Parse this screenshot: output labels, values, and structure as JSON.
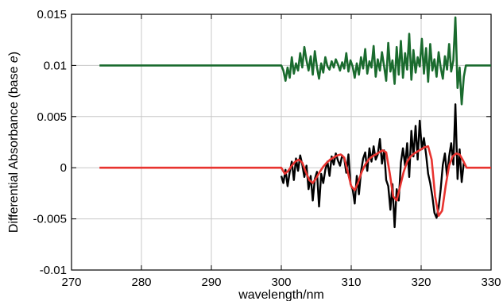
{
  "chart_data": {
    "type": "line",
    "title": "",
    "xlabel": "wavelength/nm",
    "ylabel_main": "Differential Absorbance (base ",
    "ylabel_italic": "e",
    "ylabel_end": ")",
    "xlim": [
      270,
      330
    ],
    "ylim": [
      -0.01,
      0.015
    ],
    "x_ticks": [
      270,
      280,
      290,
      300,
      310,
      320,
      330
    ],
    "x_tick_labels": [
      "270",
      "280",
      "290",
      "300",
      "310",
      "320",
      "330"
    ],
    "y_ticks": [
      -0.01,
      -0.005,
      0,
      0.005,
      0.01,
      0.015
    ],
    "y_tick_labels": [
      "-0.01",
      "-0.005",
      "0",
      "0.005",
      "0.01",
      "0.015"
    ],
    "grid": true,
    "colors": {
      "residual": "#1a6b2e",
      "measured": "#000000",
      "fit": "#e8332f",
      "grid": "#c8c8c8"
    },
    "series": [
      {
        "key": "residual",
        "x": [
          274,
          300.0,
          300.3,
          300.6,
          300.9,
          301.2,
          301.5,
          301.8,
          302.1,
          302.4,
          302.7,
          303.0,
          303.3,
          303.6,
          303.9,
          304.2,
          304.5,
          304.8,
          305.1,
          305.4,
          305.7,
          306.0,
          306.3,
          306.6,
          306.9,
          307.2,
          307.5,
          307.8,
          308.1,
          308.4,
          308.7,
          309.0,
          309.3,
          309.6,
          309.9,
          310.2,
          310.5,
          310.8,
          311.1,
          311.4,
          311.7,
          312.0,
          312.3,
          312.6,
          312.9,
          313.2,
          313.5,
          313.8,
          314.1,
          314.4,
          314.7,
          315.0,
          315.3,
          315.6,
          315.9,
          316.2,
          316.5,
          316.8,
          317.1,
          317.4,
          317.7,
          318.0,
          318.3,
          318.6,
          318.9,
          319.2,
          319.5,
          319.8,
          320.1,
          320.4,
          320.7,
          321.0,
          321.3,
          321.6,
          321.9,
          322.2,
          322.5,
          322.8,
          323.1,
          323.4,
          323.7,
          324.0,
          324.3,
          324.6,
          324.9,
          325.2,
          325.5,
          325.8,
          326.1,
          326.4,
          330
        ],
        "y": [
          0.01,
          0.01,
          0.0095,
          0.0085,
          0.0098,
          0.0088,
          0.0108,
          0.0092,
          0.0102,
          0.0095,
          0.0112,
          0.0098,
          0.0118,
          0.0105,
          0.0095,
          0.0109,
          0.0091,
          0.0114,
          0.0098,
          0.0087,
          0.0102,
          0.0093,
          0.0108,
          0.0099,
          0.0096,
          0.0104,
          0.0098,
          0.0106,
          0.0101,
          0.0095,
          0.0103,
          0.0097,
          0.0112,
          0.0094,
          0.0105,
          0.0099,
          0.0088,
          0.0102,
          0.0091,
          0.0108,
          0.0097,
          0.0116,
          0.0092,
          0.0104,
          0.0098,
          0.0119,
          0.0089,
          0.0106,
          0.0095,
          0.0113,
          0.0099,
          0.0085,
          0.0122,
          0.0094,
          0.0105,
          0.0082,
          0.0118,
          0.0091,
          0.0124,
          0.0088,
          0.0112,
          0.0096,
          0.0131,
          0.0086,
          0.0115,
          0.0093,
          0.0108,
          0.0099,
          0.0126,
          0.0092,
          0.0117,
          0.0084,
          0.0121,
          0.0095,
          0.0106,
          0.0089,
          0.0113,
          0.0098,
          0.0087,
          0.0109,
          0.0096,
          0.0121,
          0.0094,
          0.0105,
          0.0147,
          0.0078,
          0.0098,
          0.0062,
          0.0089,
          0.01,
          0.01
        ]
      },
      {
        "key": "measured",
        "x": [
          300.0,
          300.3,
          300.6,
          300.9,
          301.2,
          301.5,
          301.8,
          302.1,
          302.4,
          302.7,
          303.0,
          303.3,
          303.6,
          303.9,
          304.2,
          304.5,
          304.8,
          305.1,
          305.4,
          305.7,
          306.0,
          306.3,
          306.6,
          306.9,
          307.2,
          307.5,
          307.8,
          308.1,
          308.4,
          308.7,
          309.0,
          309.3,
          309.6,
          309.9,
          310.2,
          310.5,
          310.8,
          311.1,
          311.4,
          311.7,
          312.0,
          312.3,
          312.6,
          312.9,
          313.2,
          313.5,
          313.8,
          314.1,
          314.4,
          314.7,
          315.0,
          315.3,
          315.6,
          315.9,
          316.2,
          316.5,
          316.8,
          317.1,
          317.4,
          317.7,
          318.0,
          318.3,
          318.6,
          318.9,
          319.2,
          319.5,
          319.8,
          320.1,
          320.4,
          320.7,
          321.0,
          321.3,
          321.6,
          321.9,
          322.2,
          322.5,
          322.8,
          323.1,
          323.4,
          323.7,
          324.0,
          324.3,
          324.6,
          324.9,
          325.2,
          325.5,
          325.8,
          326.1
        ],
        "y": [
          -0.0008,
          -0.0015,
          -0.0002,
          -0.0018,
          -0.0004,
          0.0006,
          -0.0012,
          0.0009,
          -0.0003,
          0.0012,
          0.0003,
          -0.0009,
          0.0002,
          -0.0021,
          -0.0008,
          -0.0032,
          -0.0011,
          -0.0004,
          -0.0038,
          -0.0006,
          -0.0015,
          -0.0002,
          0.0006,
          -0.0008,
          0.0011,
          0.0003,
          0.0014,
          0.0007,
          0.0002,
          0.0012,
          0.0009,
          -0.0005,
          0.0013,
          -0.0016,
          -0.0021,
          -0.0035,
          -0.0008,
          -0.0026,
          -0.0004,
          0.0009,
          0.0015,
          -0.0003,
          0.0019,
          0.0006,
          0.0021,
          0.0008,
          0.0013,
          0.0028,
          0.0004,
          0.0017,
          -0.0012,
          -0.0018,
          -0.0041,
          -0.0016,
          -0.0058,
          -0.0021,
          -0.0032,
          0.0005,
          0.0019,
          0.0002,
          0.0024,
          -0.0009,
          0.0036,
          0.0011,
          0.0041,
          0.0008,
          0.0046,
          0.0018,
          0.0029,
          0.0013,
          -0.0006,
          -0.0015,
          -0.0028,
          -0.0044,
          -0.0049,
          -0.0039,
          -0.0021,
          0.0003,
          0.0014,
          -0.0009,
          0.0011,
          0.0024,
          0.0003,
          0.0062,
          -0.0011,
          0.0018,
          -0.0014,
          0.0005
        ]
      },
      {
        "key": "fit",
        "x": [
          274,
          300.0,
          300.5,
          301.0,
          301.5,
          302.0,
          302.5,
          303.0,
          303.5,
          304.0,
          304.5,
          305.0,
          305.5,
          306.0,
          306.5,
          307.0,
          307.5,
          308.0,
          308.5,
          309.0,
          309.5,
          310.0,
          310.5,
          311.0,
          311.5,
          312.0,
          312.5,
          313.0,
          313.5,
          314.0,
          314.5,
          315.0,
          315.5,
          316.0,
          316.5,
          317.0,
          317.5,
          318.0,
          318.5,
          319.0,
          319.5,
          320.0,
          320.5,
          321.0,
          321.5,
          322.0,
          322.5,
          323.0,
          323.5,
          324.0,
          324.5,
          325.0,
          325.5,
          326.0,
          326.5,
          330
        ],
        "y": [
          0,
          0,
          -0.0006,
          -0.0003,
          0.0002,
          0.0006,
          0.0008,
          0.0005,
          -0.0004,
          -0.0012,
          -0.0015,
          -0.001,
          -0.0004,
          0.0001,
          0.0005,
          0.0008,
          0.001,
          0.0012,
          0.0013,
          0.001,
          -0.0004,
          -0.0018,
          -0.0022,
          -0.0014,
          -0.0004,
          0.0003,
          0.0008,
          0.0011,
          0.0013,
          0.0015,
          0.0017,
          0.0015,
          -0.0005,
          -0.0028,
          -0.0032,
          -0.0018,
          -0.0004,
          0.0006,
          0.0011,
          0.0014,
          0.0016,
          0.0018,
          0.002,
          0.0021,
          0.0008,
          -0.0028,
          -0.0047,
          -0.0042,
          -0.0018,
          0.0002,
          0.0011,
          0.0014,
          0.0013,
          0.0007,
          0.0,
          0.0
        ]
      }
    ]
  }
}
